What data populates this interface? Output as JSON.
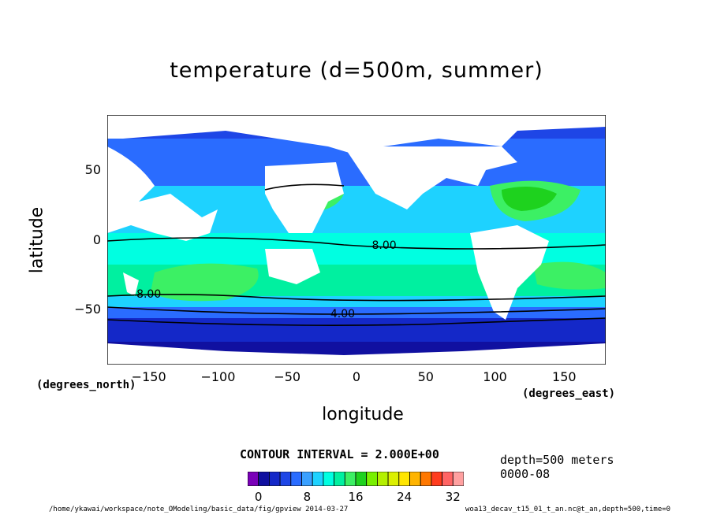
{
  "chart_data": {
    "type": "heatmap",
    "title": "temperature (d=500m, summer)",
    "xlabel": "longitude",
    "ylabel": "latitude",
    "x_unit_label": "(degrees_east)",
    "y_unit_label": "(degrees_north)",
    "xlim": [
      -180,
      180
    ],
    "ylim": [
      -90,
      90
    ],
    "x_ticks": [
      {
        "value": -150,
        "label": "−150"
      },
      {
        "value": -100,
        "label": "−100"
      },
      {
        "value": -50,
        "label": "−50"
      },
      {
        "value": 0,
        "label": "0"
      },
      {
        "value": 50,
        "label": "50"
      },
      {
        "value": 100,
        "label": "100"
      },
      {
        "value": 150,
        "label": "150"
      }
    ],
    "y_ticks": [
      {
        "value": 50,
        "label": "50"
      },
      {
        "value": 0,
        "label": "0"
      },
      {
        "value": -50,
        "label": "−50"
      }
    ],
    "contour_labels": [
      {
        "text": "8.00",
        "lon": 20,
        "lat": -5
      },
      {
        "text": "8.00",
        "lon": -150,
        "lat": -40
      },
      {
        "text": "4.00",
        "lon": -10,
        "lat": -54
      }
    ],
    "contour_interval_text": "CONTOUR INTERVAL = 2.000E+00",
    "info_lines": [
      "depth=500 meters",
      "0000-08"
    ],
    "colorbar": {
      "range": [
        0,
        32
      ],
      "step": 2,
      "labels": [
        "0",
        "8",
        "16",
        "24",
        "32"
      ],
      "colors": [
        "#7a00b8",
        "#1010a0",
        "#1428c8",
        "#1e46e6",
        "#2a6cff",
        "#3aa0ff",
        "#1ed2ff",
        "#00ffe1",
        "#00f0a0",
        "#3cf064",
        "#1ed21e",
        "#78f000",
        "#b4f000",
        "#dcf000",
        "#ffe600",
        "#ffb400",
        "#ff7800",
        "#ff3c1e",
        "#ff6464",
        "#ffa0a0"
      ]
    }
  },
  "footer": {
    "left": "/home/ykawai/workspace/note_OModeling/basic_data/fig/gpview 2014-03-27",
    "right": "woa13_decav_t15_01_t_an.nc@t_an,depth=500,time=0"
  }
}
